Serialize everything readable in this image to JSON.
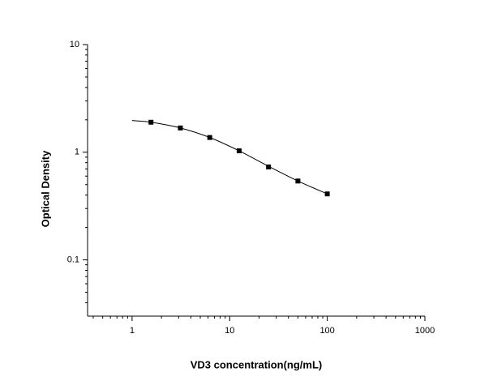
{
  "chart_data": {
    "type": "scatter",
    "x_label": "VD3 concentration(ng/mL)",
    "y_label": "Optical Density",
    "x": [
      1.5625,
      3.125,
      6.25,
      12.5,
      25,
      50,
      100
    ],
    "values": [
      1.9,
      1.68,
      1.37,
      1.03,
      0.73,
      0.54,
      0.41
    ],
    "color": "#000000",
    "fit": {
      "x": [
        1,
        1.5625,
        3.125,
        6.25,
        12.5,
        25,
        50,
        100
      ],
      "values": [
        1.97,
        1.9,
        1.68,
        1.37,
        1.03,
        0.74,
        0.54,
        0.41
      ]
    },
    "xscale": "log",
    "yscale": "log",
    "xlim": [
      0.35,
      1000
    ],
    "ylim": [
      0.03,
      10
    ],
    "xticks": [
      1,
      10,
      100,
      1000
    ],
    "yticks": [
      0.1,
      1,
      10
    ]
  }
}
